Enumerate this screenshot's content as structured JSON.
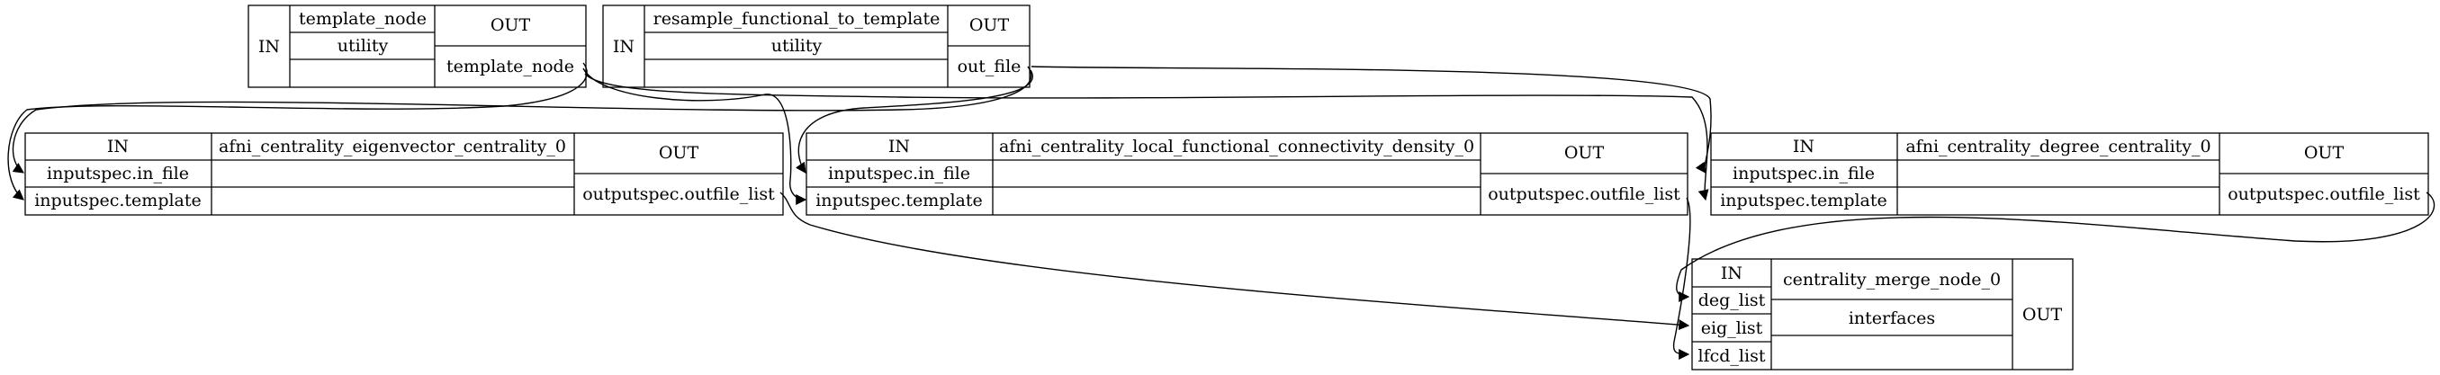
{
  "nodes": {
    "template_node": {
      "in": "IN",
      "name": "template_node",
      "iface": "utility",
      "out": "OUT",
      "out_port": "template_node"
    },
    "resample": {
      "in": "IN",
      "name": "resample_functional_to_template",
      "iface": "utility",
      "out": "OUT",
      "out_port": "out_file"
    },
    "eig": {
      "in": "IN",
      "port1": "inputspec.in_file",
      "port2": "inputspec.template",
      "name": "afni_centrality_eigenvector_centrality_0",
      "out": "OUT",
      "out_port": "outputspec.outfile_list"
    },
    "lfcd": {
      "in": "IN",
      "port1": "inputspec.in_file",
      "port2": "inputspec.template",
      "name": "afni_centrality_local_functional_connectivity_density_0",
      "out": "OUT",
      "out_port": "outputspec.outfile_list"
    },
    "deg": {
      "in": "IN",
      "port1": "inputspec.in_file",
      "port2": "inputspec.template",
      "name": "afni_centrality_degree_centrality_0",
      "out": "OUT",
      "out_port": "outputspec.outfile_list"
    },
    "merge": {
      "in": "IN",
      "port1": "deg_list",
      "port2": "eig_list",
      "port3": "lfcd_list",
      "name": "centrality_merge_node_0",
      "iface": "interfaces",
      "out": "OUT"
    }
  },
  "edges": [
    {
      "from": "template_node.template_node",
      "to": "afni_centrality_eigenvector_centrality_0.inputspec.template"
    },
    {
      "from": "template_node.template_node",
      "to": "afni_centrality_local_functional_connectivity_density_0.inputspec.template"
    },
    {
      "from": "template_node.template_node",
      "to": "afni_centrality_degree_centrality_0.inputspec.template"
    },
    {
      "from": "resample_functional_to_template.out_file",
      "to": "afni_centrality_eigenvector_centrality_0.inputspec.in_file"
    },
    {
      "from": "resample_functional_to_template.out_file",
      "to": "afni_centrality_local_functional_connectivity_density_0.inputspec.in_file"
    },
    {
      "from": "resample_functional_to_template.out_file",
      "to": "afni_centrality_degree_centrality_0.inputspec.in_file"
    },
    {
      "from": "afni_centrality_degree_centrality_0.outputspec.outfile_list",
      "to": "centrality_merge_node_0.deg_list"
    },
    {
      "from": "afni_centrality_eigenvector_centrality_0.outputspec.outfile_list",
      "to": "centrality_merge_node_0.eig_list"
    },
    {
      "from": "afni_centrality_local_functional_connectivity_density_0.outputspec.outfile_list",
      "to": "centrality_merge_node_0.lfcd_list"
    }
  ]
}
